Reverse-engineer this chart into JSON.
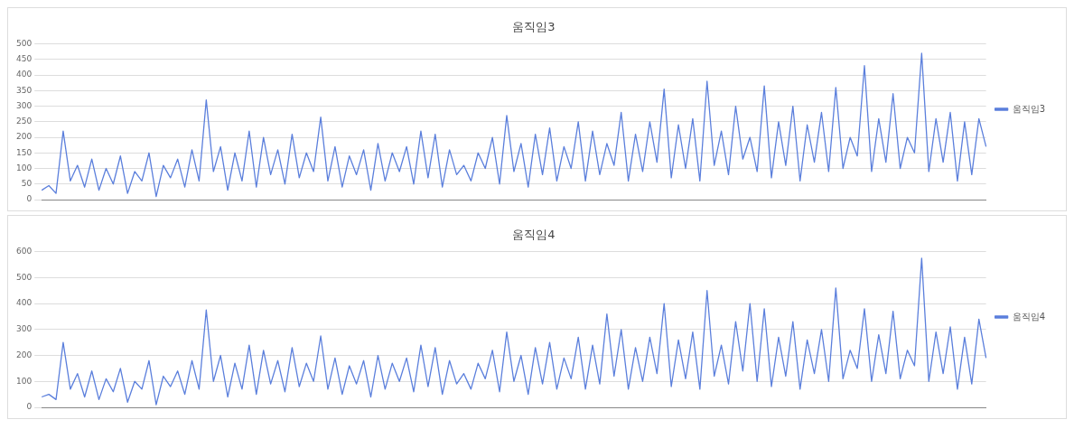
{
  "chart_data": [
    {
      "type": "line",
      "title": "움직임3",
      "legend": "right",
      "grid": "y",
      "ylim": [
        0,
        500
      ],
      "yticks": [
        0,
        50,
        100,
        150,
        200,
        250,
        300,
        350,
        400,
        450,
        500
      ],
      "categories": [
        null,
        null,
        null,
        null,
        null,
        null,
        null,
        null,
        null,
        null,
        null,
        null,
        null,
        null,
        null,
        null,
        null,
        null,
        null,
        null,
        null,
        null,
        null,
        null,
        null,
        null,
        null,
        null,
        null,
        null,
        null,
        null,
        null,
        null,
        null,
        null,
        null,
        null,
        null,
        null,
        null,
        null,
        null,
        null,
        null,
        null,
        null,
        null,
        null,
        null,
        null,
        null,
        null,
        null,
        null,
        null,
        null,
        null,
        null,
        null,
        null,
        null,
        null,
        null,
        null,
        null,
        null,
        null,
        null,
        null,
        null,
        null,
        null,
        null,
        null,
        null,
        null,
        null,
        null,
        null,
        null,
        null,
        null,
        null,
        null,
        null,
        null,
        null,
        null,
        null,
        null,
        null,
        null,
        null,
        null,
        null,
        null,
        null,
        null,
        null,
        null,
        null,
        null,
        null,
        null,
        null,
        null,
        null,
        null,
        null,
        null,
        null,
        null,
        null,
        null,
        null,
        null,
        null,
        null,
        null,
        null,
        null,
        null,
        null,
        null,
        null,
        null,
        null,
        null,
        null,
        null,
        null,
        null
      ],
      "series": [
        {
          "name": "움직임3",
          "color": "#5b7fdc",
          "values": [
            30,
            45,
            20,
            220,
            60,
            110,
            40,
            130,
            30,
            100,
            50,
            140,
            20,
            90,
            60,
            150,
            10,
            110,
            70,
            130,
            40,
            160,
            60,
            320,
            90,
            170,
            30,
            150,
            60,
            220,
            40,
            200,
            80,
            160,
            50,
            210,
            70,
            150,
            90,
            265,
            60,
            170,
            40,
            140,
            80,
            160,
            30,
            180,
            60,
            150,
            90,
            170,
            50,
            220,
            70,
            210,
            40,
            160,
            80,
            110,
            60,
            150,
            100,
            200,
            50,
            270,
            90,
            180,
            40,
            210,
            80,
            230,
            60,
            170,
            100,
            250,
            60,
            220,
            80,
            180,
            110,
            280,
            60,
            210,
            90,
            250,
            120,
            355,
            70,
            240,
            100,
            260,
            60,
            380,
            110,
            220,
            80,
            300,
            130,
            200,
            90,
            365,
            70,
            250,
            110,
            300,
            60,
            240,
            120,
            280,
            90,
            360,
            100,
            200,
            140,
            430,
            90,
            260,
            120,
            340,
            100,
            200,
            150,
            470,
            90,
            260,
            120,
            280,
            60,
            250,
            80,
            260,
            170
          ]
        }
      ]
    },
    {
      "type": "line",
      "title": "움직임4",
      "legend": "right",
      "grid": "y",
      "ylim": [
        0,
        600
      ],
      "yticks": [
        0,
        100,
        200,
        300,
        400,
        500,
        600
      ],
      "categories": [
        null,
        null,
        null,
        null,
        null,
        null,
        null,
        null,
        null,
        null,
        null,
        null,
        null,
        null,
        null,
        null,
        null,
        null,
        null,
        null,
        null,
        null,
        null,
        null,
        null,
        null,
        null,
        null,
        null,
        null,
        null,
        null,
        null,
        null,
        null,
        null,
        null,
        null,
        null,
        null,
        null,
        null,
        null,
        null,
        null,
        null,
        null,
        null,
        null,
        null,
        null,
        null,
        null,
        null,
        null,
        null,
        null,
        null,
        null,
        null,
        null,
        null,
        null,
        null,
        null,
        null,
        null,
        null,
        null,
        null,
        null,
        null,
        null,
        null,
        null,
        null,
        null,
        null,
        null,
        null,
        null,
        null,
        null,
        null,
        null,
        null,
        null,
        null,
        null,
        null,
        null,
        null,
        null,
        null,
        null,
        null,
        null,
        null,
        null,
        null,
        null,
        null,
        null,
        null,
        null,
        null,
        null,
        null,
        null,
        null,
        null,
        null,
        null,
        null,
        null,
        null,
        null,
        null,
        null,
        null,
        null,
        null,
        null,
        null,
        null,
        null,
        null,
        null,
        null,
        null,
        null,
        null,
        null
      ],
      "series": [
        {
          "name": "움직임4",
          "color": "#5b7fdc",
          "values": [
            40,
            50,
            30,
            250,
            70,
            130,
            40,
            140,
            30,
            110,
            60,
            150,
            20,
            100,
            70,
            180,
            10,
            120,
            80,
            140,
            50,
            180,
            70,
            375,
            100,
            200,
            40,
            170,
            70,
            240,
            50,
            220,
            90,
            180,
            60,
            230,
            80,
            170,
            100,
            275,
            70,
            190,
            50,
            160,
            90,
            180,
            40,
            200,
            70,
            170,
            100,
            190,
            60,
            240,
            80,
            230,
            50,
            180,
            90,
            130,
            70,
            170,
            110,
            220,
            60,
            290,
            100,
            200,
            50,
            230,
            90,
            250,
            70,
            190,
            110,
            270,
            70,
            240,
            90,
            360,
            120,
            300,
            70,
            230,
            100,
            270,
            130,
            400,
            80,
            260,
            110,
            290,
            70,
            450,
            120,
            240,
            90,
            330,
            140,
            400,
            100,
            380,
            80,
            270,
            120,
            330,
            70,
            260,
            130,
            300,
            100,
            460,
            110,
            220,
            150,
            380,
            100,
            280,
            130,
            370,
            110,
            220,
            160,
            575,
            100,
            290,
            130,
            310,
            70,
            270,
            90,
            340,
            190
          ]
        }
      ]
    }
  ]
}
